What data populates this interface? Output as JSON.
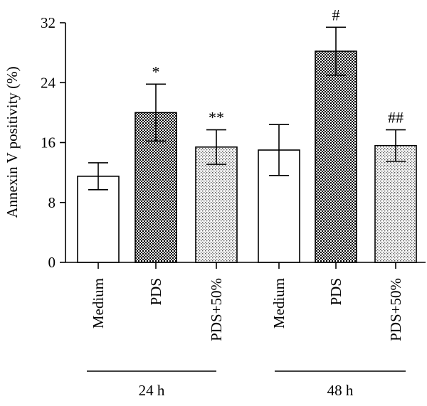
{
  "chart_data": {
    "type": "bar",
    "ylabel": "Annexin V positivity (%)",
    "ylim": [
      0,
      32
    ],
    "yticks": [
      "0",
      "8",
      "16",
      "24",
      "32"
    ],
    "groups": [
      {
        "label": "24 h",
        "bars": [
          {
            "category": "Medium",
            "value": 11.5,
            "error": 1.8,
            "annotation": "",
            "pattern": "none"
          },
          {
            "category": "PDS",
            "value": 20.0,
            "error": 3.8,
            "annotation": "*",
            "pattern": "checker-dark"
          },
          {
            "category": "PDS+50%",
            "value": 15.4,
            "error": 2.3,
            "annotation": "**",
            "pattern": "dots-light"
          }
        ]
      },
      {
        "label": "48 h",
        "bars": [
          {
            "category": "Medium",
            "value": 15.0,
            "error": 3.4,
            "annotation": "",
            "pattern": "none"
          },
          {
            "category": "PDS",
            "value": 28.2,
            "error": 3.2,
            "annotation": "#",
            "pattern": "checker-dark"
          },
          {
            "category": "PDS+50%",
            "value": 15.6,
            "error": 2.1,
            "annotation": "##",
            "pattern": "dots-light"
          }
        ]
      }
    ]
  }
}
